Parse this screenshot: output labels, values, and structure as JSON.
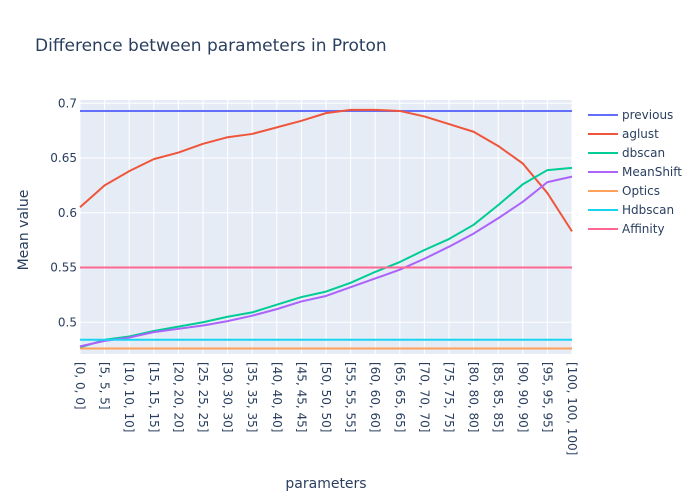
{
  "chart_data": {
    "type": "line",
    "title": "Difference between parameters in Proton",
    "xlabel": "parameters",
    "ylabel": "Mean value",
    "ylim": [
      0.471,
      0.703
    ],
    "yticks": [
      0.5,
      0.55,
      0.6,
      0.65,
      0.7
    ],
    "ytick_labels": [
      "0.5",
      "0.55",
      "0.6",
      "0.65",
      "0.7"
    ],
    "grid": true,
    "legend_position": "top-right",
    "categories": [
      "[0, 0, 0]",
      "[5, 5, 5]",
      "[10, 10, 10]",
      "[15, 15, 15]",
      "[20, 20, 20]",
      "[25, 25, 25]",
      "[30, 30, 30]",
      "[35, 35, 35]",
      "[40, 40, 40]",
      "[45, 45, 45]",
      "[50, 50, 50]",
      "[55, 55, 55]",
      "[60, 60, 60]",
      "[65, 65, 65]",
      "[70, 70, 70]",
      "[75, 75, 75]",
      "[80, 80, 80]",
      "[85, 85, 85]",
      "[90, 90, 90]",
      "[95, 95, 95]",
      "[100, 100, 100]"
    ],
    "series": [
      {
        "name": "previous",
        "color": "#636efa",
        "values": [
          0.693,
          0.693,
          0.693,
          0.693,
          0.693,
          0.693,
          0.693,
          0.693,
          0.693,
          0.693,
          0.693,
          0.693,
          0.693,
          0.693,
          0.693,
          0.693,
          0.693,
          0.693,
          0.693,
          0.693,
          0.693
        ]
      },
      {
        "name": "aglust",
        "color": "#ef553b",
        "values": [
          0.605,
          0.625,
          0.638,
          0.649,
          0.655,
          0.663,
          0.669,
          0.672,
          0.678,
          0.684,
          0.691,
          0.694,
          0.694,
          0.693,
          0.688,
          0.681,
          0.674,
          0.661,
          0.645,
          0.618,
          0.583
        ]
      },
      {
        "name": "dbscan",
        "color": "#00cc96",
        "values": [
          0.477,
          0.484,
          0.487,
          0.492,
          0.496,
          0.5,
          0.505,
          0.509,
          0.516,
          0.523,
          0.528,
          0.536,
          0.546,
          0.555,
          0.566,
          0.576,
          0.589,
          0.607,
          0.626,
          0.639,
          0.641
        ]
      },
      {
        "name": "MeanShift",
        "color": "#ab63fa",
        "values": [
          0.478,
          0.483,
          0.486,
          0.491,
          0.494,
          0.497,
          0.501,
          0.506,
          0.512,
          0.519,
          0.524,
          0.532,
          0.54,
          0.548,
          0.558,
          0.569,
          0.581,
          0.595,
          0.61,
          0.628,
          0.633
        ]
      },
      {
        "name": "Optics",
        "color": "#ffa15a",
        "values": [
          0.476,
          0.476,
          0.476,
          0.476,
          0.476,
          0.476,
          0.476,
          0.476,
          0.476,
          0.476,
          0.476,
          0.476,
          0.476,
          0.476,
          0.476,
          0.476,
          0.476,
          0.476,
          0.476,
          0.476,
          0.476
        ]
      },
      {
        "name": "Hdbscan",
        "color": "#19d3f3",
        "values": [
          0.484,
          0.484,
          0.484,
          0.484,
          0.484,
          0.484,
          0.484,
          0.484,
          0.484,
          0.484,
          0.484,
          0.484,
          0.484,
          0.484,
          0.484,
          0.484,
          0.484,
          0.484,
          0.484,
          0.484,
          0.484
        ]
      },
      {
        "name": "Affinity",
        "color": "#ff6692",
        "values": [
          0.55,
          0.55,
          0.55,
          0.55,
          0.55,
          0.55,
          0.55,
          0.55,
          0.55,
          0.55,
          0.55,
          0.55,
          0.55,
          0.55,
          0.55,
          0.55,
          0.55,
          0.55,
          0.55,
          0.55,
          0.55
        ]
      }
    ]
  }
}
